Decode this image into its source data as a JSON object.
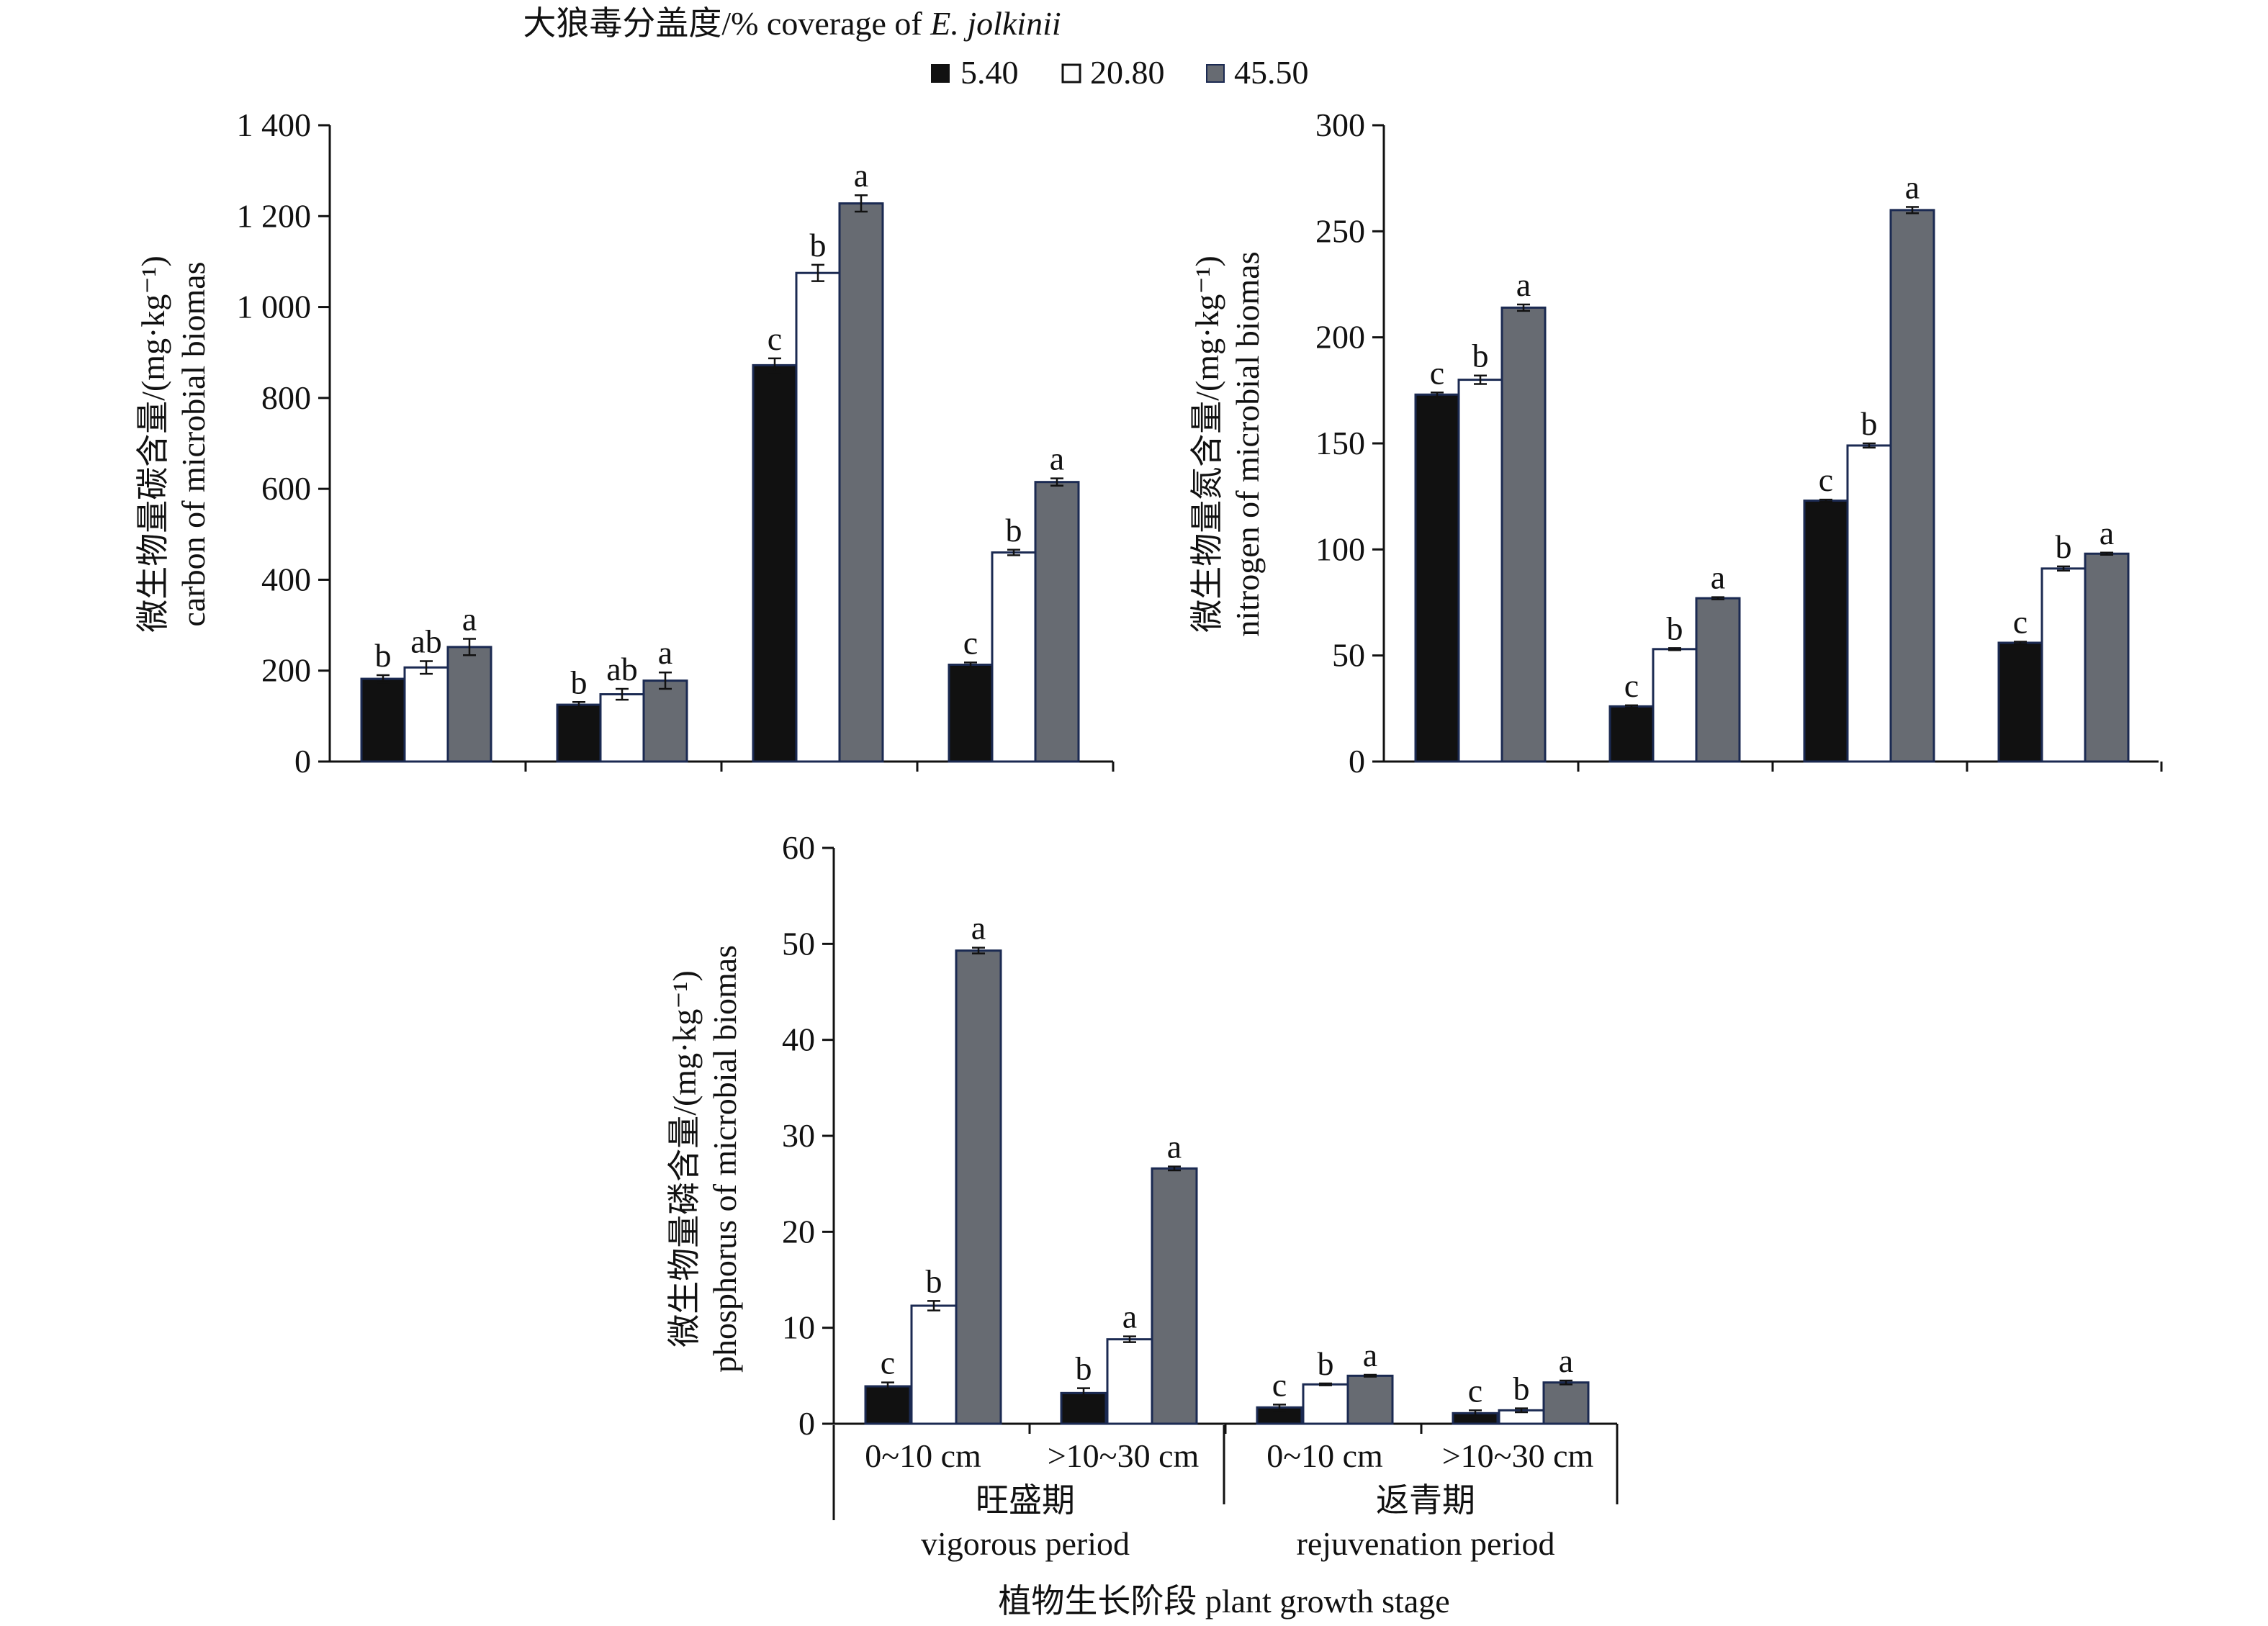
{
  "header": {
    "title_prefix": "大狼毒分盖度/% coverage of ",
    "title_species": "E. jolkinii"
  },
  "legend": {
    "items": [
      {
        "label": "5.40",
        "color": "#111111"
      },
      {
        "label": "20.80",
        "color": "#ffffff"
      },
      {
        "label": "45.50",
        "color": "#676b72"
      }
    ]
  },
  "xaxis": {
    "depth_labels": [
      "0~10 cm",
      ">10~30 cm",
      "0~10 cm",
      ">10~30 cm"
    ],
    "periods": [
      {
        "cn": "旺盛期",
        "en": "vigorous period"
      },
      {
        "cn": "返青期",
        "en": "rejuvenation period"
      }
    ],
    "title": "植物生长阶段 plant growth stage"
  },
  "chart_data": [
    {
      "type": "bar",
      "id": "carbon",
      "ylabel_cn": "微生物量碳含量/(mg·kg⁻¹)",
      "ylabel_en": "carbon of microbial biomas",
      "ylim": [
        0,
        1400
      ],
      "yticks": [
        0,
        200,
        400,
        600,
        800,
        1000,
        1200,
        1400
      ],
      "ytick_labels": [
        "0",
        "200",
        "400",
        "600",
        "800",
        "1 000",
        "1 200",
        "1 400"
      ],
      "categories": [
        "vigorous 0~10 cm",
        "vigorous >10~30 cm",
        "rejuvenation 0~10 cm",
        "rejuvenation >10~30 cm"
      ],
      "series": [
        {
          "name": "5.40",
          "values": [
            182,
            125,
            872,
            213
          ],
          "errors": [
            8,
            6,
            15,
            5
          ],
          "letters": [
            "b",
            "b",
            "c",
            "c"
          ]
        },
        {
          "name": "20.80",
          "values": [
            207,
            148,
            1075,
            460
          ],
          "errors": [
            14,
            12,
            18,
            6
          ],
          "letters": [
            "ab",
            "ab",
            "b",
            "b"
          ]
        },
        {
          "name": "45.50",
          "values": [
            252,
            178,
            1228,
            615
          ],
          "errors": [
            18,
            18,
            18,
            8
          ],
          "letters": [
            "a",
            "a",
            "a",
            "a"
          ]
        }
      ]
    },
    {
      "type": "bar",
      "id": "nitrogen",
      "ylabel_cn": "微生物量氮含量/(mg·kg⁻¹)",
      "ylabel_en": "nitrogen of microbial biomas",
      "ylim": [
        0,
        300
      ],
      "yticks": [
        0,
        50,
        100,
        150,
        200,
        250,
        300
      ],
      "ytick_labels": [
        "0",
        "50",
        "100",
        "150",
        "200",
        "250",
        "300"
      ],
      "categories": [
        "vigorous 0~10 cm",
        "vigorous >10~30 cm",
        "rejuvenation 0~10 cm",
        "rejuvenation >10~30 cm"
      ],
      "series": [
        {
          "name": "5.40",
          "values": [
            173,
            26,
            123,
            56
          ],
          "errors": [
            1,
            0.5,
            0.5,
            0.5
          ],
          "letters": [
            "c",
            "c",
            "c",
            "c"
          ]
        },
        {
          "name": "20.80",
          "values": [
            180,
            53,
            149,
            91
          ],
          "errors": [
            2,
            0.5,
            1,
            1
          ],
          "letters": [
            "b",
            "b",
            "b",
            "b"
          ]
        },
        {
          "name": "45.50",
          "values": [
            214,
            77,
            260,
            98
          ],
          "errors": [
            1.5,
            0.5,
            1.5,
            0.5
          ],
          "letters": [
            "a",
            "a",
            "a",
            "a"
          ]
        }
      ]
    },
    {
      "type": "bar",
      "id": "phosphorus",
      "ylabel_cn": "微生物量磷含量/(mg·kg⁻¹)",
      "ylabel_en": "phosphorus of microbial biomas",
      "ylim": [
        0,
        60
      ],
      "yticks": [
        0,
        10,
        20,
        30,
        40,
        50,
        60
      ],
      "ytick_labels": [
        "0",
        "10",
        "20",
        "30",
        "40",
        "50",
        "60"
      ],
      "categories": [
        "vigorous 0~10 cm",
        "vigorous >10~30 cm",
        "rejuvenation 0~10 cm",
        "rejuvenation >10~30 cm"
      ],
      "series": [
        {
          "name": "5.40",
          "values": [
            3.9,
            3.2,
            1.7,
            1.1
          ],
          "errors": [
            0.4,
            0.5,
            0.3,
            0.3
          ],
          "letters": [
            "c",
            "b",
            "c",
            "c"
          ]
        },
        {
          "name": "20.80",
          "values": [
            12.3,
            8.8,
            4.1,
            1.4
          ],
          "errors": [
            0.5,
            0.3,
            0.1,
            0.2
          ],
          "letters": [
            "b",
            "a",
            "b",
            "b"
          ]
        },
        {
          "name": "45.50",
          "values": [
            49.3,
            26.6,
            5.0,
            4.3
          ],
          "errors": [
            0.3,
            0.2,
            0.1,
            0.2
          ],
          "letters": [
            "a",
            "a",
            "a",
            "a"
          ]
        }
      ]
    }
  ]
}
